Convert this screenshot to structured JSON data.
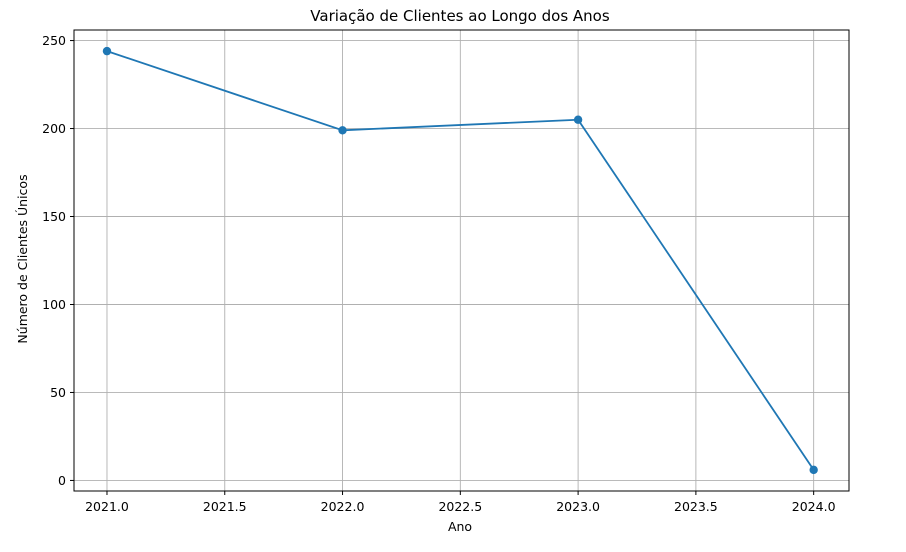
{
  "chart_data": {
    "type": "line",
    "title": "Variação de Clientes ao Longo dos Anos",
    "xlabel": "Ano",
    "ylabel": "Número de Clientes Únicos",
    "x": [
      2021,
      2022,
      2023,
      2024
    ],
    "series": [
      {
        "values": [
          244,
          199,
          205,
          6
        ],
        "color": "#1f77b4",
        "marker": "circle"
      }
    ],
    "xlim": [
      2020.86,
      2024.15
    ],
    "ylim": [
      -6,
      256
    ],
    "xticks": [
      2021.0,
      2021.5,
      2022.0,
      2022.5,
      2023.0,
      2023.5,
      2024.0
    ],
    "xtick_labels": [
      "2021.0",
      "2021.5",
      "2022.0",
      "2022.5",
      "2023.0",
      "2023.5",
      "2024.0"
    ],
    "yticks": [
      0,
      50,
      100,
      150,
      200,
      250
    ],
    "ytick_labels": [
      "0",
      "50",
      "100",
      "150",
      "200",
      "250"
    ],
    "grid": true,
    "grid_color": "#b0b0b0",
    "legend": null
  }
}
